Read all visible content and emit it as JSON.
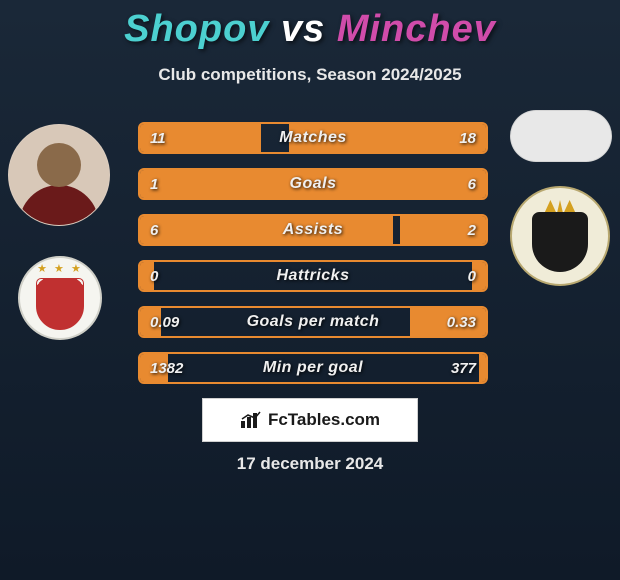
{
  "header": {
    "player_a": "Shopov",
    "vs": "vs",
    "player_b": "Minchev",
    "subtitle": "Club competitions, Season 2024/2025",
    "color_a": "#4cd0d0",
    "color_b": "#d04caa"
  },
  "stats": {
    "bar_border_color": "#e88a30",
    "bar_fill_color": "#e88a30",
    "label_color": "#f0f0f0",
    "rows": [
      {
        "label": "Matches",
        "a": "11",
        "b": "18",
        "pct_a": 35,
        "pct_b": 57
      },
      {
        "label": "Goals",
        "a": "1",
        "b": "6",
        "pct_a": 17,
        "pct_b": 92
      },
      {
        "label": "Assists",
        "a": "6",
        "b": "2",
        "pct_a": 73,
        "pct_b": 25
      },
      {
        "label": "Hattricks",
        "a": "0",
        "b": "0",
        "pct_a": 4,
        "pct_b": 4
      },
      {
        "label": "Goals per match",
        "a": "0.09",
        "b": "0.33",
        "pct_a": 6,
        "pct_b": 22
      },
      {
        "label": "Min per goal",
        "a": "1382",
        "b": "377",
        "pct_a": 8,
        "pct_b": 2
      }
    ]
  },
  "footer": {
    "brand": "FcTables.com",
    "date": "17 december 2024"
  },
  "colors": {
    "background_top": "#1a2838",
    "background_bottom": "#0f1a28",
    "text_light": "#e8e8e8"
  }
}
